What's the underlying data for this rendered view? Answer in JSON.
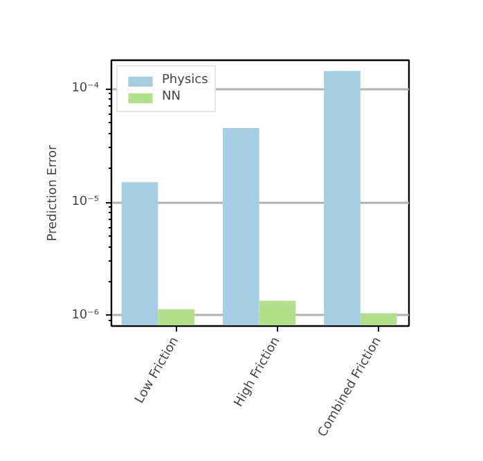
{
  "chart_data": {
    "type": "bar",
    "ylabel": "Prediction Error",
    "categories": [
      "Low Friction",
      "High Friction",
      "Combined Friction"
    ],
    "series": [
      {
        "name": "Physics",
        "color": "#a6cee3",
        "values": [
          1.5e-05,
          4.5e-05,
          0.000143
        ]
      },
      {
        "name": "NN",
        "color": "#b2df8a",
        "values": [
          1.14e-06,
          1.35e-06,
          1.05e-06
        ]
      }
    ],
    "log": true,
    "ylim": [
      8.1e-07,
      0.000178
    ],
    "yticks": [
      {
        "value": 1e-06,
        "label": "10⁻⁶"
      },
      {
        "value": 1e-05,
        "label": "10⁻⁵"
      },
      {
        "value": 0.0001,
        "label": "10⁻⁴"
      }
    ],
    "grid": "y",
    "legend": "top left"
  }
}
